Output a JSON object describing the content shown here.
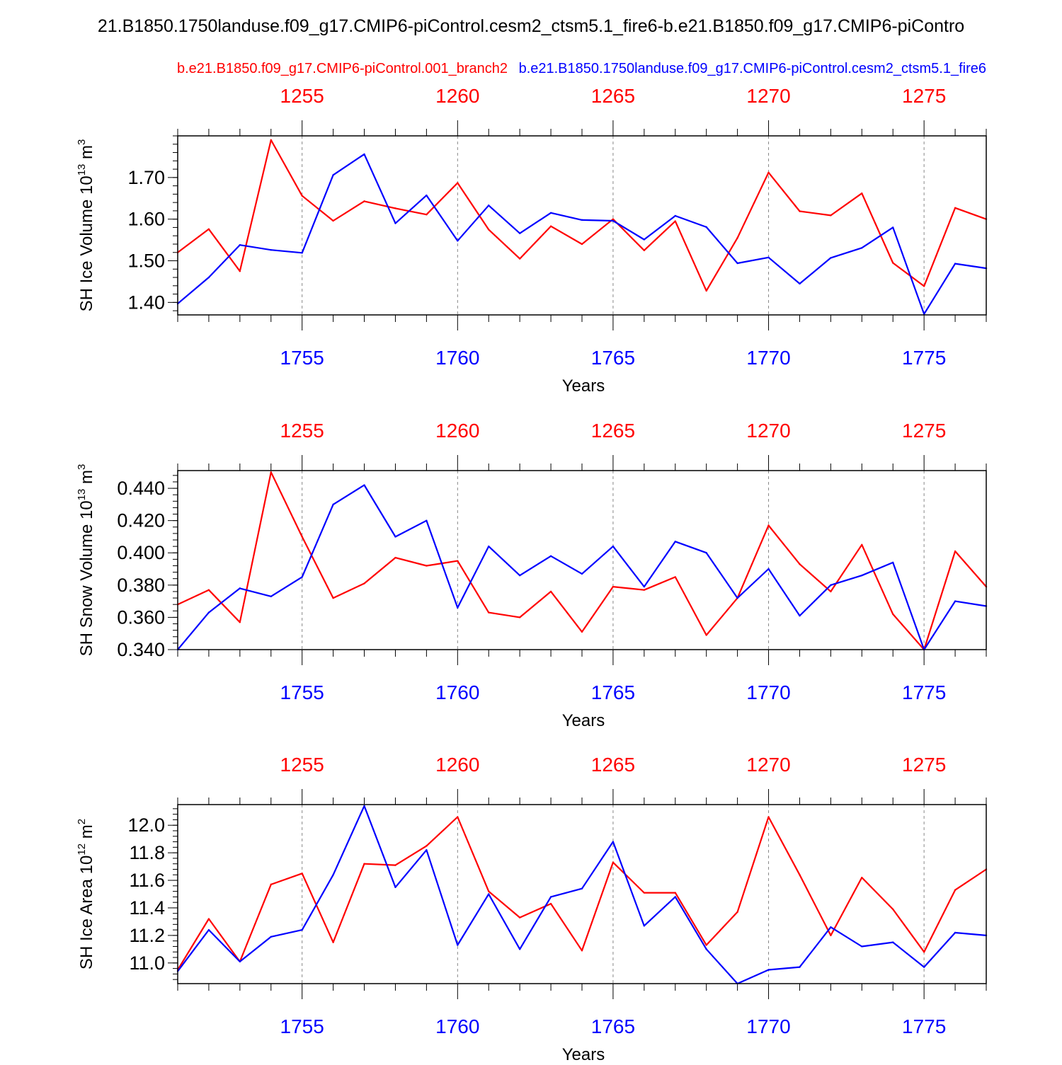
{
  "figure": {
    "title": "21.B1850.1750landuse.f09_g17.CMIP6-piControl.cesm2_ctsm5.1_fire6-b.e21.B1850.f09_g17.CMIP6-piContro",
    "legend_red": "b.e21.B1850.f09_g17.CMIP6-piControl.001_branch2",
    "legend_blue": "b.e21.B1850.1750landuse.f09_g17.CMIP6-piControl.cesm2_ctsm5.1_fire6",
    "colors": {
      "red": "#ff0000",
      "blue": "#0000ff",
      "grid": "#888888",
      "axis": "#000000"
    }
  },
  "chart_data": [
    {
      "type": "line",
      "ylabel": "SH Ice Volume",
      "yunit_base": "10",
      "yunit_exp": "13",
      "yunit_tail": "m",
      "yunit_tail_exp": "3",
      "xlabel": "Years",
      "ylim": [
        1.37,
        1.8
      ],
      "yticks": [
        "1.40",
        "1.50",
        "1.60",
        "1.70"
      ],
      "bottom_xlim": [
        1751,
        1777
      ],
      "bottom_ticks": [
        "1755",
        "1760",
        "1765",
        "1770",
        "1775"
      ],
      "top_ticks": [
        "1255",
        "1260",
        "1265",
        "1270",
        "1275"
      ],
      "grid": "dashed vertical at major ticks",
      "series": [
        {
          "name": "b.e21.B1850.f09_g17.CMIP6-piControl.001_branch2",
          "color": "#ff0000",
          "x": [
            1751,
            1752,
            1753,
            1754,
            1755,
            1756,
            1757,
            1758,
            1759,
            1760,
            1761,
            1762,
            1763,
            1764,
            1765,
            1766,
            1767,
            1768,
            1769,
            1770,
            1771,
            1772,
            1773,
            1774,
            1775,
            1776,
            1777
          ],
          "values": [
            1.52,
            1.576,
            1.475,
            1.79,
            1.656,
            1.596,
            1.643,
            1.626,
            1.611,
            1.687,
            1.575,
            1.505,
            1.583,
            1.54,
            1.6,
            1.525,
            1.595,
            1.428,
            1.555,
            1.712,
            1.619,
            1.609,
            1.662,
            1.495,
            1.439,
            1.627,
            1.6
          ]
        },
        {
          "name": "b.e21.B1850.1750landuse.f09_g17.CMIP6-piControl.cesm2_ctsm5.1_fire6",
          "color": "#0000ff",
          "x": [
            1751,
            1752,
            1753,
            1754,
            1755,
            1756,
            1757,
            1758,
            1759,
            1760,
            1761,
            1762,
            1763,
            1764,
            1765,
            1766,
            1767,
            1768,
            1769,
            1770,
            1771,
            1772,
            1773,
            1774,
            1775,
            1776,
            1777
          ],
          "values": [
            1.397,
            1.46,
            1.538,
            1.526,
            1.519,
            1.706,
            1.756,
            1.59,
            1.657,
            1.548,
            1.633,
            1.566,
            1.615,
            1.598,
            1.596,
            1.551,
            1.608,
            1.581,
            1.494,
            1.508,
            1.445,
            1.507,
            1.531,
            1.58,
            1.372,
            1.493,
            1.482
          ]
        }
      ]
    },
    {
      "type": "line",
      "ylabel": "SH Snow Volume",
      "yunit_base": "10",
      "yunit_exp": "13",
      "yunit_tail": "m",
      "yunit_tail_exp": "3",
      "xlabel": "Years",
      "ylim": [
        0.34,
        0.451
      ],
      "yticks": [
        "0.340",
        "0.360",
        "0.380",
        "0.400",
        "0.420",
        "0.440"
      ],
      "bottom_xlim": [
        1751,
        1777
      ],
      "bottom_ticks": [
        "1755",
        "1760",
        "1765",
        "1770",
        "1775"
      ],
      "top_ticks": [
        "1255",
        "1260",
        "1265",
        "1270",
        "1275"
      ],
      "grid": "dashed vertical at major ticks",
      "series": [
        {
          "name": "b.e21.B1850.f09_g17.CMIP6-piControl.001_branch2",
          "color": "#ff0000",
          "x": [
            1751,
            1752,
            1753,
            1754,
            1755,
            1756,
            1757,
            1758,
            1759,
            1760,
            1761,
            1762,
            1763,
            1764,
            1765,
            1766,
            1767,
            1768,
            1769,
            1770,
            1771,
            1772,
            1773,
            1774,
            1775,
            1776,
            1777
          ],
          "values": [
            0.368,
            0.377,
            0.357,
            0.45,
            0.41,
            0.372,
            0.381,
            0.397,
            0.392,
            0.395,
            0.363,
            0.36,
            0.376,
            0.351,
            0.379,
            0.377,
            0.385,
            0.349,
            0.372,
            0.417,
            0.393,
            0.376,
            0.405,
            0.362,
            0.34,
            0.401,
            0.379
          ]
        },
        {
          "name": "b.e21.B1850.1750landuse.f09_g17.CMIP6-piControl.cesm2_ctsm5.1_fire6",
          "color": "#0000ff",
          "x": [
            1751,
            1752,
            1753,
            1754,
            1755,
            1756,
            1757,
            1758,
            1759,
            1760,
            1761,
            1762,
            1763,
            1764,
            1765,
            1766,
            1767,
            1768,
            1769,
            1770,
            1771,
            1772,
            1773,
            1774,
            1775,
            1776,
            1777
          ],
          "values": [
            0.34,
            0.363,
            0.378,
            0.373,
            0.385,
            0.43,
            0.442,
            0.41,
            0.42,
            0.366,
            0.404,
            0.386,
            0.398,
            0.387,
            0.404,
            0.379,
            0.407,
            0.4,
            0.372,
            0.39,
            0.361,
            0.38,
            0.386,
            0.394,
            0.34,
            0.37,
            0.367
          ]
        }
      ]
    },
    {
      "type": "line",
      "ylabel": "SH Ice Area",
      "yunit_base": "10",
      "yunit_exp": "12",
      "yunit_tail": "m",
      "yunit_tail_exp": "2",
      "xlabel": "Years",
      "ylim": [
        10.85,
        12.15
      ],
      "yticks": [
        "11.0",
        "11.2",
        "11.4",
        "11.6",
        "11.8",
        "12.0"
      ],
      "bottom_xlim": [
        1751,
        1777
      ],
      "bottom_ticks": [
        "1755",
        "1760",
        "1765",
        "1770",
        "1775"
      ],
      "top_ticks": [
        "1255",
        "1260",
        "1265",
        "1270",
        "1275"
      ],
      "grid": "dashed vertical at major ticks",
      "series": [
        {
          "name": "b.e21.B1850.f09_g17.CMIP6-piControl.001_branch2",
          "color": "#ff0000",
          "x": [
            1751,
            1752,
            1753,
            1754,
            1755,
            1756,
            1757,
            1758,
            1759,
            1760,
            1761,
            1762,
            1763,
            1764,
            1765,
            1766,
            1767,
            1768,
            1769,
            1770,
            1771,
            1772,
            1773,
            1774,
            1775,
            1776,
            1777
          ],
          "values": [
            10.95,
            11.32,
            11.01,
            11.57,
            11.65,
            11.15,
            11.72,
            11.71,
            11.85,
            12.06,
            11.52,
            11.33,
            11.43,
            11.09,
            11.73,
            11.51,
            11.51,
            11.13,
            11.37,
            12.06,
            11.64,
            11.2,
            11.62,
            11.39,
            11.08,
            11.53,
            11.68
          ]
        },
        {
          "name": "b.e21.B1850.1750landuse.f09_g17.CMIP6-piControl.cesm2_ctsm5.1_fire6",
          "color": "#0000ff",
          "x": [
            1751,
            1752,
            1753,
            1754,
            1755,
            1756,
            1757,
            1758,
            1759,
            1760,
            1761,
            1762,
            1763,
            1764,
            1765,
            1766,
            1767,
            1768,
            1769,
            1770,
            1771,
            1772,
            1773,
            1774,
            1775,
            1776,
            1777
          ],
          "values": [
            10.94,
            11.24,
            11.01,
            11.19,
            11.24,
            11.64,
            12.14,
            11.55,
            11.82,
            11.13,
            11.5,
            11.1,
            11.48,
            11.54,
            11.88,
            11.27,
            11.48,
            11.1,
            10.85,
            10.95,
            10.97,
            11.26,
            11.12,
            11.15,
            10.97,
            11.22,
            11.2
          ]
        }
      ]
    }
  ]
}
